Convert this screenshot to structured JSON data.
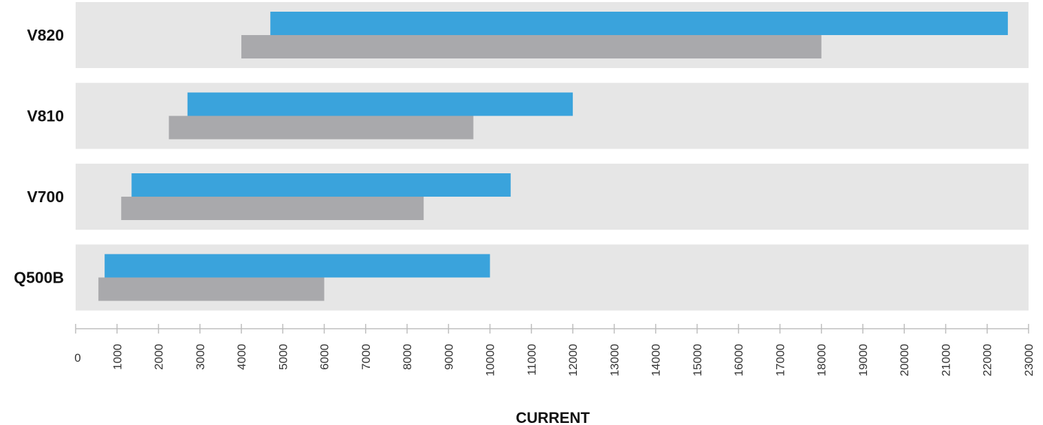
{
  "chart_data": {
    "type": "bar",
    "orientation": "horizontal",
    "style": "floating-range",
    "categories": [
      "V820",
      "V810",
      "V700",
      "Q500B"
    ],
    "series": [
      {
        "color": "#3aa3dc",
        "ranges": [
          [
            4700,
            22500
          ],
          [
            2700,
            12000
          ],
          [
            1350,
            10500
          ],
          [
            700,
            10000
          ]
        ]
      },
      {
        "color": "#a9a9ac",
        "ranges": [
          [
            4000,
            18000
          ],
          [
            2250,
            9600
          ],
          [
            1100,
            8400
          ],
          [
            550,
            6000
          ]
        ]
      }
    ],
    "xlabel": "CURRENT",
    "xlim": [
      0,
      23000
    ],
    "xticks": [
      "0",
      "1000",
      "2000",
      "3000",
      "4000",
      "5000",
      "6000",
      "7000",
      "8000",
      "9000",
      "10000",
      "11000",
      "12000",
      "13000",
      "14000",
      "15000",
      "16000",
      "17000",
      "18000",
      "19000",
      "20000",
      "21000",
      "22000",
      "23000"
    ],
    "band_color": "#e6e6e6",
    "grid": false,
    "legend": "none"
  }
}
